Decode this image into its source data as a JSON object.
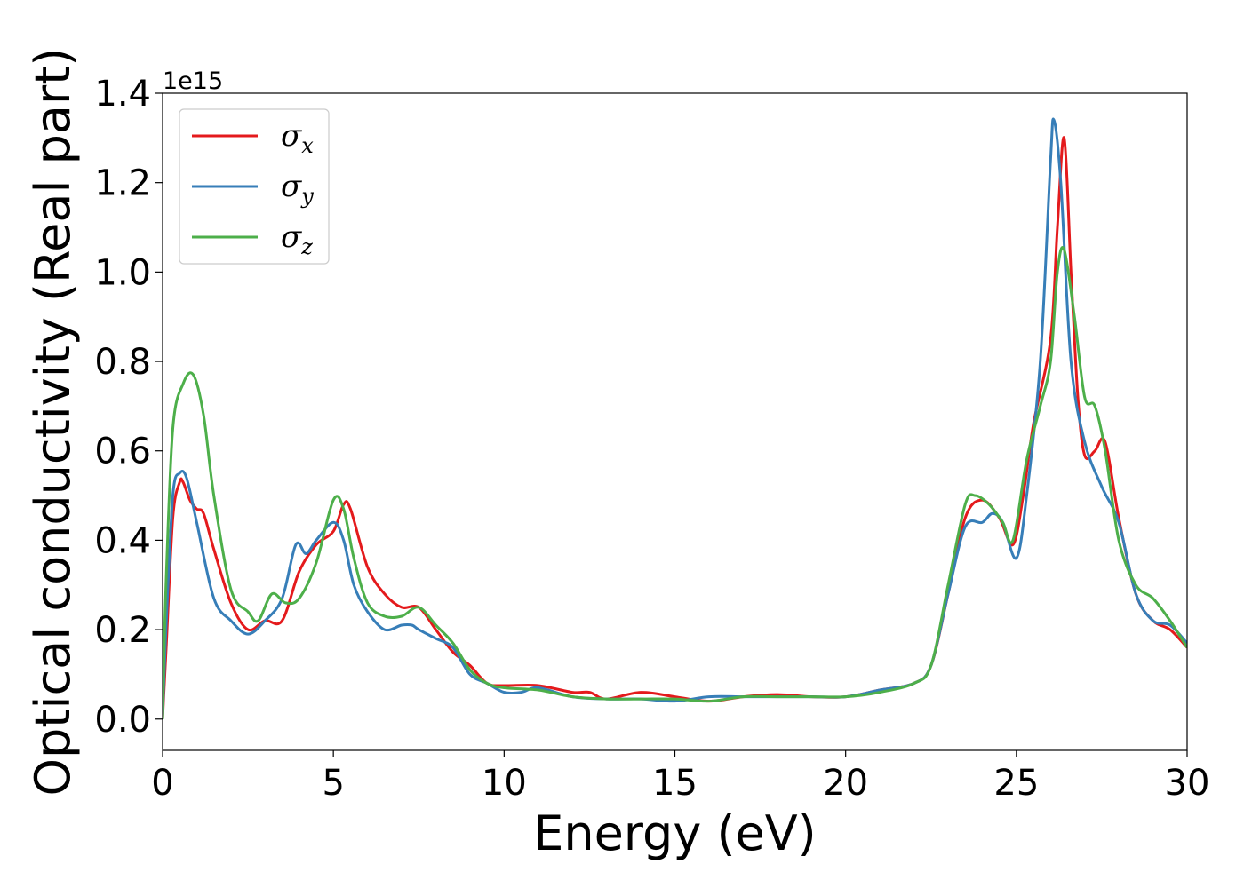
{
  "chart_data": {
    "type": "line",
    "title": "",
    "xlabel": "Energy (eV)",
    "ylabel": "Optical conductivity (Real part)",
    "y_offset_label": "1e15",
    "xlim": [
      0,
      30
    ],
    "ylim": [
      -0.07,
      1.4
    ],
    "xticks": [
      0,
      5,
      10,
      15,
      20,
      25,
      30
    ],
    "xtick_labels": [
      "0",
      "5",
      "10",
      "15",
      "20",
      "25",
      "30"
    ],
    "yticks": [
      0.0,
      0.2,
      0.4,
      0.6,
      0.8,
      1.0,
      1.2,
      1.4
    ],
    "ytick_labels": [
      "0.0",
      "0.2",
      "0.4",
      "0.6",
      "0.8",
      "1.0",
      "1.2",
      "1.4"
    ],
    "grid": false,
    "legend_position": "top-left",
    "series": [
      {
        "name": "σ",
        "subscript": "x",
        "color": "#e41a1c",
        "x": [
          0,
          0.1,
          0.3,
          0.5,
          0.6,
          0.8,
          1.0,
          1.2,
          1.5,
          2.0,
          2.5,
          3.0,
          3.5,
          4.0,
          4.5,
          5.0,
          5.3,
          5.5,
          6.0,
          6.5,
          7.0,
          7.5,
          8.0,
          8.5,
          9.0,
          9.5,
          10.0,
          11.0,
          12.0,
          12.5,
          13.0,
          14.0,
          15.0,
          16.0,
          17.0,
          18.0,
          19.0,
          20.0,
          21.0,
          22.0,
          22.5,
          23.0,
          23.5,
          24.0,
          24.5,
          24.9,
          25.2,
          25.5,
          26.0,
          26.2,
          26.4,
          26.6,
          26.8,
          27.0,
          27.3,
          27.6,
          28.0,
          28.5,
          29.0,
          29.5,
          30.0
        ],
        "y": [
          0.0,
          0.15,
          0.45,
          0.53,
          0.53,
          0.49,
          0.47,
          0.46,
          0.38,
          0.26,
          0.2,
          0.22,
          0.22,
          0.33,
          0.39,
          0.42,
          0.48,
          0.47,
          0.34,
          0.28,
          0.25,
          0.25,
          0.2,
          0.15,
          0.12,
          0.08,
          0.075,
          0.075,
          0.06,
          0.06,
          0.045,
          0.06,
          0.05,
          0.04,
          0.05,
          0.055,
          0.05,
          0.05,
          0.065,
          0.08,
          0.12,
          0.28,
          0.45,
          0.49,
          0.45,
          0.39,
          0.5,
          0.66,
          0.85,
          1.1,
          1.3,
          1.0,
          0.72,
          0.59,
          0.6,
          0.62,
          0.45,
          0.28,
          0.22,
          0.2,
          0.16
        ]
      },
      {
        "name": "σ",
        "subscript": "y",
        "color": "#377eb8",
        "x": [
          0,
          0.1,
          0.3,
          0.5,
          0.7,
          1.0,
          1.5,
          2.0,
          2.5,
          3.0,
          3.5,
          3.9,
          4.2,
          4.5,
          5.0,
          5.3,
          5.6,
          6.0,
          6.5,
          7.0,
          7.3,
          7.5,
          8.0,
          8.5,
          9.0,
          9.5,
          10.0,
          10.5,
          11.0,
          12.0,
          13.0,
          14.0,
          15.0,
          16.0,
          17.0,
          18.0,
          19.0,
          20.0,
          21.0,
          22.0,
          22.5,
          23.0,
          23.5,
          24.0,
          24.3,
          24.6,
          25.0,
          25.3,
          25.7,
          26.0,
          26.1,
          26.3,
          26.6,
          27.0,
          27.5,
          28.0,
          28.5,
          29.0,
          29.5,
          30.0
        ],
        "y": [
          0.0,
          0.2,
          0.5,
          0.55,
          0.54,
          0.44,
          0.27,
          0.22,
          0.19,
          0.22,
          0.27,
          0.39,
          0.37,
          0.4,
          0.44,
          0.4,
          0.3,
          0.24,
          0.2,
          0.21,
          0.21,
          0.2,
          0.18,
          0.16,
          0.1,
          0.08,
          0.06,
          0.06,
          0.07,
          0.05,
          0.045,
          0.045,
          0.04,
          0.05,
          0.05,
          0.05,
          0.05,
          0.05,
          0.065,
          0.08,
          0.12,
          0.28,
          0.43,
          0.44,
          0.46,
          0.44,
          0.36,
          0.5,
          0.8,
          1.25,
          1.34,
          1.2,
          0.8,
          0.62,
          0.52,
          0.44,
          0.28,
          0.22,
          0.21,
          0.17
        ]
      },
      {
        "name": "σ",
        "subscript": "z",
        "color": "#4daf4a",
        "x": [
          0,
          0.1,
          0.3,
          0.6,
          0.9,
          1.2,
          1.5,
          2.0,
          2.5,
          2.8,
          3.2,
          3.6,
          4.0,
          4.5,
          5.0,
          5.3,
          5.6,
          6.0,
          6.5,
          7.0,
          7.5,
          8.0,
          8.5,
          9.0,
          9.5,
          10.0,
          11.0,
          12.0,
          13.0,
          14.0,
          15.0,
          16.0,
          17.0,
          18.0,
          19.0,
          20.0,
          21.0,
          22.0,
          22.5,
          23.0,
          23.5,
          23.8,
          24.2,
          24.6,
          24.9,
          25.3,
          25.7,
          26.0,
          26.2,
          26.4,
          26.7,
          27.0,
          27.3,
          27.6,
          28.0,
          28.5,
          29.0,
          29.5,
          30.0
        ],
        "y": [
          0.0,
          0.3,
          0.65,
          0.75,
          0.77,
          0.68,
          0.5,
          0.29,
          0.24,
          0.22,
          0.28,
          0.26,
          0.27,
          0.35,
          0.49,
          0.47,
          0.36,
          0.26,
          0.23,
          0.23,
          0.25,
          0.21,
          0.17,
          0.11,
          0.08,
          0.07,
          0.065,
          0.05,
          0.045,
          0.045,
          0.045,
          0.04,
          0.05,
          0.05,
          0.05,
          0.05,
          0.06,
          0.08,
          0.12,
          0.3,
          0.48,
          0.5,
          0.48,
          0.44,
          0.4,
          0.58,
          0.7,
          0.8,
          1.0,
          1.05,
          0.9,
          0.72,
          0.7,
          0.6,
          0.4,
          0.3,
          0.27,
          0.22,
          0.16
        ]
      }
    ]
  }
}
